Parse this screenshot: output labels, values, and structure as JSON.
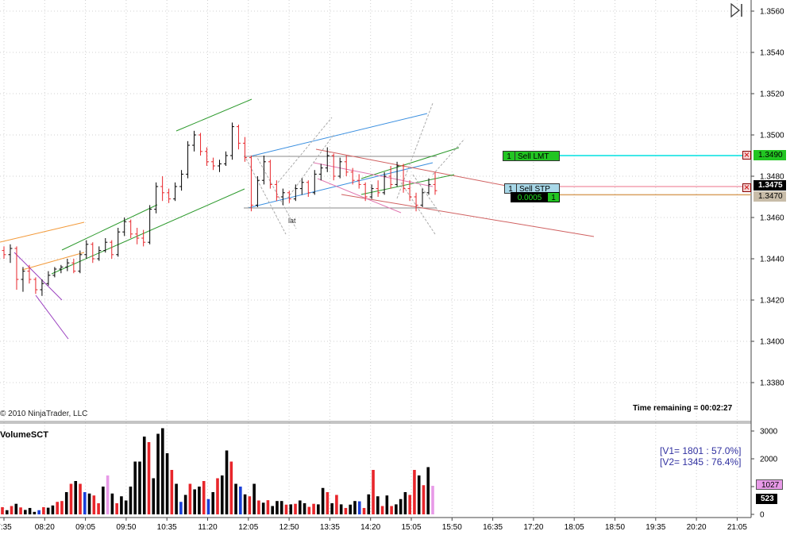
{
  "copyright": "© 2010 NinjaTrader, LLC",
  "time_remaining": "Time remaining = 00:02:27",
  "volume_panel_title": "VolumeSCT",
  "volume_stats": {
    "v1": "[V1= 1801 : 57.0%]",
    "v2": "[V2= 1345 : 76.4%]"
  },
  "price_axis_labels": [
    "1.3560",
    "1.3540",
    "1.3520",
    "1.3500",
    "1.3480",
    "1.3460",
    "1.3440",
    "1.3420",
    "1.3400",
    "1.3380"
  ],
  "volume_axis_labels": [
    "3000",
    "2000",
    "1000",
    "0"
  ],
  "time_axis_labels": [
    "7:35",
    "08:20",
    "09:05",
    "09:50",
    "10:35",
    "11:20",
    "12:05",
    "12:50",
    "13:35",
    "14:20",
    "15:05",
    "15:50",
    "16:35",
    "17:20",
    "18:05",
    "18:50",
    "19:35",
    "20:20",
    "21:05"
  ],
  "orders": {
    "sell_lmt": {
      "qty": "1",
      "label": "Sell LMT",
      "price": "1.3490"
    },
    "sell_stp": {
      "qty": "1",
      "label": "Sell STP",
      "price": "1.3475"
    },
    "position": {
      "pnl": "0.0005",
      "qty": "1",
      "price": "1.3470"
    }
  },
  "volume_tags": {
    "current": "1027",
    "last": "523"
  },
  "annotation_lat": "lat",
  "colors": {
    "up_bar": "#000000",
    "down_bar": "#e8262b",
    "neutral_bar": "#1a3fd8",
    "current_bar": "#e89ae8",
    "order_lmt": "#00e0e0",
    "order_stp": "#f4a0b0",
    "position": "#d9a060",
    "stats_text": "#3030a0"
  },
  "scroll_button_icon": "scroll-to-end-icon",
  "chart_data": [
    {
      "type": "candlestick",
      "instrument_units": "price",
      "ylim": [
        1.3365,
        1.3565
      ],
      "x_labels": [
        "7:35",
        "08:20",
        "09:05",
        "09:50",
        "10:35",
        "11:20",
        "12:05",
        "12:50",
        "13:35",
        "14:20",
        "15:05",
        "15:50",
        "16:35",
        "17:20",
        "18:05",
        "18:50",
        "19:35",
        "20:20",
        "21:05"
      ],
      "bars_ohlc": [
        [
          1.3444,
          1.3446,
          1.344,
          1.3442
        ],
        [
          1.3442,
          1.3447,
          1.3438,
          1.3445
        ],
        [
          1.3445,
          1.3446,
          1.3425,
          1.343
        ],
        [
          1.343,
          1.3436,
          1.3424,
          1.3434
        ],
        [
          1.3434,
          1.3437,
          1.3428,
          1.343
        ],
        [
          1.343,
          1.3431,
          1.3423,
          1.3425
        ],
        [
          1.3425,
          1.343,
          1.3422,
          1.3428
        ],
        [
          1.3428,
          1.3434,
          1.3427,
          1.3432
        ],
        [
          1.3432,
          1.3436,
          1.3431,
          1.3435
        ],
        [
          1.3435,
          1.3437,
          1.3433,
          1.3436
        ],
        [
          1.3436,
          1.344,
          1.3434,
          1.3438
        ],
        [
          1.3438,
          1.344,
          1.3433,
          1.3434
        ],
        [
          1.3434,
          1.3444,
          1.3433,
          1.3442
        ],
        [
          1.3442,
          1.3449,
          1.344,
          1.3447
        ],
        [
          1.3447,
          1.3448,
          1.3438,
          1.344
        ],
        [
          1.344,
          1.3446,
          1.3439,
          1.3444
        ],
        [
          1.3444,
          1.345,
          1.3443,
          1.3448
        ],
        [
          1.3448,
          1.3449,
          1.344,
          1.3442
        ],
        [
          1.3442,
          1.3455,
          1.3441,
          1.3453
        ],
        [
          1.3453,
          1.346,
          1.3451,
          1.3458
        ],
        [
          1.3458,
          1.3459,
          1.345,
          1.3452
        ],
        [
          1.3452,
          1.3455,
          1.3447,
          1.345
        ],
        [
          1.345,
          1.3454,
          1.3446,
          1.3448
        ],
        [
          1.3448,
          1.3466,
          1.3447,
          1.3464
        ],
        [
          1.3464,
          1.3477,
          1.3462,
          1.3475
        ],
        [
          1.3475,
          1.348,
          1.3468,
          1.3472
        ],
        [
          1.3472,
          1.3474,
          1.3467,
          1.3469
        ],
        [
          1.3469,
          1.3477,
          1.3468,
          1.3475
        ],
        [
          1.3475,
          1.3483,
          1.3473,
          1.3481
        ],
        [
          1.3481,
          1.3497,
          1.3479,
          1.3495
        ],
        [
          1.3495,
          1.3502,
          1.3492,
          1.35
        ],
        [
          1.35,
          1.3501,
          1.349,
          1.3492
        ],
        [
          1.3492,
          1.3494,
          1.3485,
          1.3487
        ],
        [
          1.3487,
          1.3489,
          1.3483,
          1.3485
        ],
        [
          1.3485,
          1.3488,
          1.3482,
          1.3486
        ],
        [
          1.3486,
          1.3492,
          1.3485,
          1.349
        ],
        [
          1.349,
          1.3506,
          1.3488,
          1.3504
        ],
        [
          1.3504,
          1.3505,
          1.3493,
          1.3496
        ],
        [
          1.3496,
          1.3499,
          1.3487,
          1.3489
        ],
        [
          1.3489,
          1.349,
          1.3463,
          1.3466
        ],
        [
          1.3466,
          1.348,
          1.3465,
          1.3478
        ],
        [
          1.3478,
          1.349,
          1.3476,
          1.3487
        ],
        [
          1.3487,
          1.3488,
          1.3474,
          1.3476
        ],
        [
          1.3476,
          1.3478,
          1.3468,
          1.347
        ],
        [
          1.347,
          1.3474,
          1.3466,
          1.3472
        ],
        [
          1.3472,
          1.3473,
          1.3467,
          1.3469
        ],
        [
          1.3469,
          1.3476,
          1.3468,
          1.3474
        ],
        [
          1.3474,
          1.3479,
          1.3471,
          1.3477
        ],
        [
          1.3477,
          1.3478,
          1.347,
          1.3472
        ],
        [
          1.3472,
          1.3483,
          1.3471,
          1.3481
        ],
        [
          1.3481,
          1.3486,
          1.3478,
          1.3484
        ],
        [
          1.3484,
          1.3494,
          1.3482,
          1.349
        ],
        [
          1.349,
          1.3491,
          1.3478,
          1.348
        ],
        [
          1.348,
          1.3489,
          1.3479,
          1.3487
        ],
        [
          1.3487,
          1.349,
          1.348,
          1.3482
        ],
        [
          1.3482,
          1.3484,
          1.3476,
          1.3478
        ],
        [
          1.3478,
          1.3481,
          1.3474,
          1.3476
        ],
        [
          1.3476,
          1.3477,
          1.3468,
          1.347
        ],
        [
          1.347,
          1.3476,
          1.3469,
          1.3474
        ],
        [
          1.3474,
          1.3478,
          1.347,
          1.3472
        ],
        [
          1.3472,
          1.3482,
          1.3471,
          1.348
        ],
        [
          1.348,
          1.3485,
          1.3474,
          1.3476
        ],
        [
          1.3476,
          1.3487,
          1.3475,
          1.3485
        ],
        [
          1.3485,
          1.3486,
          1.3472,
          1.3474
        ],
        [
          1.3474,
          1.3478,
          1.3468,
          1.347
        ],
        [
          1.347,
          1.3472,
          1.3463,
          1.3466
        ],
        [
          1.3466,
          1.3474,
          1.3465,
          1.3472
        ],
        [
          1.3472,
          1.3479,
          1.3471,
          1.3476
        ],
        [
          1.3476,
          1.3482,
          1.3471,
          1.3473
        ]
      ]
    },
    {
      "type": "bar",
      "title": "VolumeSCT",
      "ylim": [
        0,
        3200
      ],
      "values": [
        260,
        150,
        300,
        380,
        250,
        160,
        230,
        90,
        150,
        260,
        240,
        320,
        450,
        480,
        800,
        1100,
        1200,
        1100,
        800,
        750,
        680,
        400,
        1000,
        1400,
        750,
        400,
        650,
        500,
        1000,
        1900,
        1900,
        2800,
        2600,
        1300,
        2900,
        3100,
        2200,
        1600,
        1100,
        450,
        700,
        1100,
        900,
        1000,
        1200,
        550,
        800,
        1300,
        1400,
        2300,
        1900,
        1100,
        1000,
        720,
        650,
        1100,
        500,
        420,
        510,
        300,
        480,
        480,
        350,
        360,
        380,
        500,
        400,
        270,
        380,
        360,
        950,
        800,
        400,
        700,
        360,
        230,
        350,
        480,
        470,
        230,
        720,
        1600,
        650,
        300,
        680,
        300,
        360,
        550,
        800,
        700,
        1600,
        1400,
        1050,
        1700,
        1027
      ],
      "colors": [
        "r",
        "k",
        "r",
        "k",
        "r",
        "k",
        "k",
        "k",
        "b",
        "r",
        "k",
        "k",
        "r",
        "r",
        "k",
        "r",
        "k",
        "r",
        "b",
        "k",
        "r",
        "r",
        "k",
        "p",
        "k",
        "r",
        "k",
        "k",
        "k",
        "k",
        "k",
        "k",
        "r",
        "k",
        "k",
        "k",
        "k",
        "r",
        "k",
        "b",
        "k",
        "r",
        "k",
        "k",
        "r",
        "b",
        "k",
        "r",
        "k",
        "k",
        "r",
        "k",
        "b",
        "k",
        "r",
        "k",
        "r",
        "k",
        "r",
        "k",
        "k",
        "k",
        "r",
        "k",
        "r",
        "k",
        "k",
        "r",
        "r",
        "k",
        "k",
        "r",
        "k",
        "r",
        "k",
        "r",
        "k",
        "k",
        "b",
        "r",
        "k",
        "r",
        "k",
        "r",
        "k",
        "r",
        "k",
        "k",
        "k",
        "r",
        "r",
        "k",
        "r",
        "k",
        "p"
      ]
    }
  ]
}
